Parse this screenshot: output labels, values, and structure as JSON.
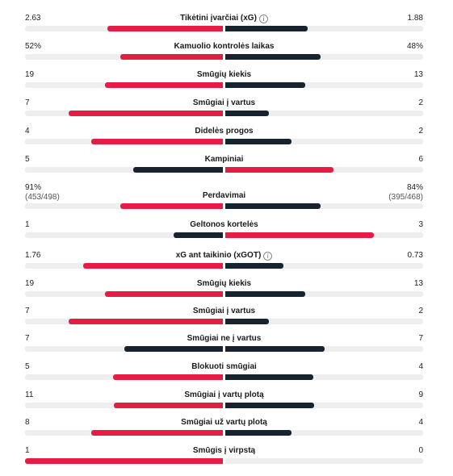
{
  "colors": {
    "home": "#e51d45",
    "away": "#17232e",
    "track": "#eeeeef"
  },
  "stats": [
    {
      "label": "Tikėtini įvarčiai (xG)",
      "info": true,
      "home": "2.63",
      "away": "1.88",
      "home_share": 0.583,
      "away_share": 0.417,
      "home_winner": true
    },
    {
      "label": "Kamuolio kontrolės laikas",
      "home": "52%",
      "away": "48%",
      "home_share": 0.52,
      "away_share": 0.48,
      "home_winner": true
    },
    {
      "label": "Smūgių kiekis",
      "home": "19",
      "away": "13",
      "home_share": 0.594,
      "away_share": 0.406,
      "home_winner": true
    },
    {
      "label": "Smūgiai į vartus",
      "home": "7",
      "away": "2",
      "home_share": 0.778,
      "away_share": 0.222,
      "home_winner": true
    },
    {
      "label": "Didelės progos",
      "home": "4",
      "away": "2",
      "home_share": 0.667,
      "away_share": 0.333,
      "home_winner": true
    },
    {
      "label": "Kampiniai",
      "home": "5",
      "away": "6",
      "home_share": 0.455,
      "away_share": 0.545,
      "home_winner": false
    },
    {
      "label": "Perdavimai",
      "home": "91%",
      "home_sub": "(453/498)",
      "away": "84%",
      "away_sub": "(395/468)",
      "home_share": 0.52,
      "away_share": 0.48,
      "home_winner": true
    },
    {
      "label": "Geltonos kortelės",
      "home": "1",
      "away": "3",
      "home_share": 0.25,
      "away_share": 0.75,
      "home_winner": false
    },
    {
      "label": "xG ant taikinio (xGOT)",
      "info": true,
      "home": "1.76",
      "away": "0.73",
      "home_share": 0.707,
      "away_share": 0.293,
      "home_winner": true
    },
    {
      "label": "Smūgių kiekis",
      "home": "19",
      "away": "13",
      "home_share": 0.594,
      "away_share": 0.406,
      "home_winner": true
    },
    {
      "label": "Smūgiai į vartus",
      "home": "7",
      "away": "2",
      "home_share": 0.778,
      "away_share": 0.222,
      "home_winner": true
    },
    {
      "label": "Smūgiai ne į vartus",
      "home": "7",
      "away": "7",
      "home_share": 0.5,
      "away_share": 0.5,
      "home_winner": false,
      "away_winner": false
    },
    {
      "label": "Blokuoti smūgiai",
      "home": "5",
      "away": "4",
      "home_share": 0.556,
      "away_share": 0.444,
      "home_winner": true
    },
    {
      "label": "Smūgiai į vartų plotą",
      "home": "11",
      "away": "9",
      "home_share": 0.55,
      "away_share": 0.45,
      "home_winner": true
    },
    {
      "label": "Smūgiai už vartų plotą",
      "home": "8",
      "away": "4",
      "home_share": 0.667,
      "away_share": 0.333,
      "home_winner": true
    },
    {
      "label": "Smūgis į virpstą",
      "home": "1",
      "away": "0",
      "home_share": 1.0,
      "away_share": 0.0,
      "home_winner": true
    }
  ]
}
